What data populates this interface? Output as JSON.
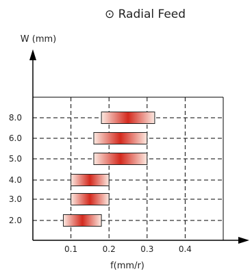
{
  "chart_data": {
    "type": "bar",
    "orientation": "horizontal-range",
    "title": "⊙ Radial Feed",
    "xlabel": "f(mm/r)",
    "ylabel": "W (mm)",
    "x_ticks": [
      "0.1",
      "0.2",
      "0.3",
      "0.4"
    ],
    "x_tick_values": [
      0.1,
      0.2,
      0.3,
      0.4
    ],
    "xlim": [
      0.0,
      0.5
    ],
    "categories": [
      "2.0",
      "3.0",
      "4.0",
      "5.0",
      "6.0",
      "8.0"
    ],
    "ranges": [
      {
        "category": "2.0",
        "min": 0.08,
        "max": 0.18
      },
      {
        "category": "3.0",
        "min": 0.1,
        "max": 0.2
      },
      {
        "category": "4.0",
        "min": 0.1,
        "max": 0.2
      },
      {
        "category": "5.0",
        "min": 0.16,
        "max": 0.3
      },
      {
        "category": "6.0",
        "min": 0.16,
        "max": 0.3
      },
      {
        "category": "8.0",
        "min": 0.18,
        "max": 0.32
      }
    ],
    "grid": true,
    "grid_style": "dashed",
    "legend": false,
    "colors": {
      "bar_center": "#d42a1e",
      "bar_edge": "#fbe9e1",
      "bar_outline": "#222222",
      "axis": "#000000",
      "grid": "#000000"
    }
  }
}
